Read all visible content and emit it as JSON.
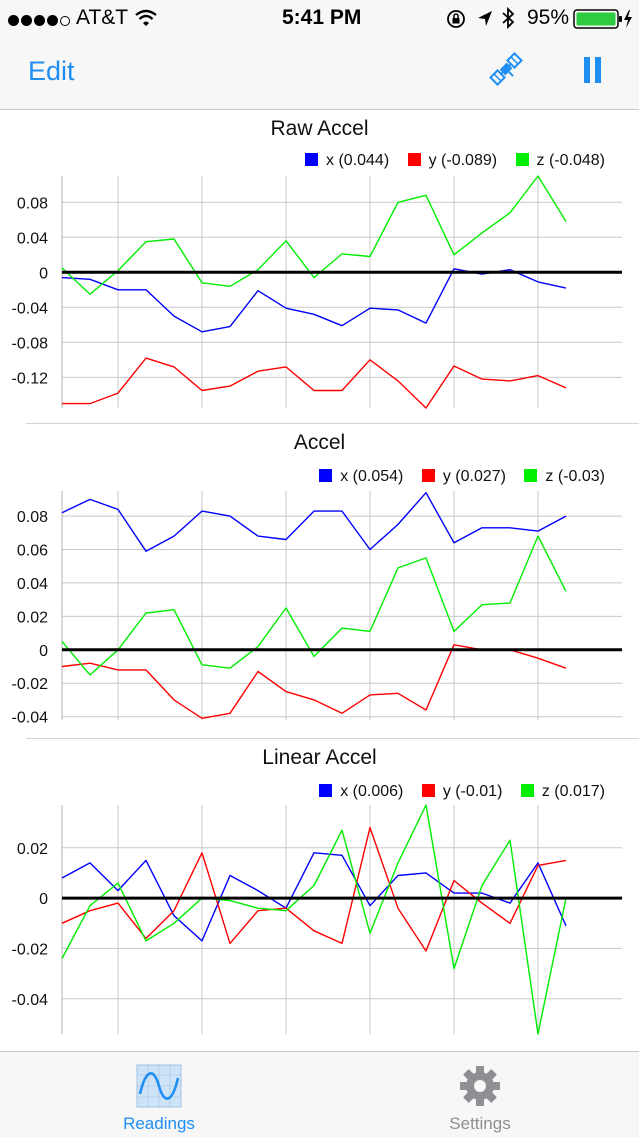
{
  "status_bar": {
    "carrier": "AT&T",
    "time": "5:41 PM",
    "battery": "95%"
  },
  "nav": {
    "edit_label": "Edit"
  },
  "charts": [
    {
      "title": "Raw Accel",
      "legend": {
        "x": "x (0.044)",
        "y": "y (-0.089)",
        "z": "z (-0.048)"
      }
    },
    {
      "title": "Accel",
      "legend": {
        "x": "x (0.054)",
        "y": "y (0.027)",
        "z": "z (-0.03)"
      }
    },
    {
      "title": "Linear Accel",
      "legend": {
        "x": "x (0.006)",
        "y": "y (-0.01)",
        "z": "z (0.017)"
      }
    }
  ],
  "tabs": {
    "readings": "Readings",
    "settings": "Settings"
  },
  "colors": {
    "accent": "#1e8ef3",
    "x": "#0000ff",
    "y": "#ff0000",
    "z": "#00ee00",
    "grid": "#c8c8c8",
    "tab_inactive": "#8e8e93"
  },
  "chart_data": [
    {
      "type": "line",
      "title": "Raw Accel",
      "ylim": [
        -0.155,
        0.11
      ],
      "yticks": [
        0.08,
        0.04,
        0,
        -0.04,
        -0.08,
        -0.12
      ],
      "ytick_labels": [
        "0.08",
        "0.04",
        "0",
        "-0.04",
        "-0.08",
        "-0.12"
      ],
      "grid": true,
      "legend_position": "top-right",
      "series": [
        {
          "name": "x (0.044)",
          "color": "#0000ff",
          "values": [
            -0.006,
            -0.008,
            -0.02,
            -0.02,
            -0.05,
            -0.068,
            -0.062,
            -0.021,
            -0.041,
            -0.048,
            -0.061,
            -0.041,
            -0.043,
            -0.058,
            0.004,
            -0.002,
            0.003,
            -0.011,
            -0.018
          ]
        },
        {
          "name": "y (-0.089)",
          "color": "#ff0000",
          "values": [
            -0.15,
            -0.15,
            -0.138,
            -0.098,
            -0.108,
            -0.135,
            -0.13,
            -0.113,
            -0.108,
            -0.135,
            -0.135,
            -0.1,
            -0.124,
            -0.155,
            -0.107,
            -0.122,
            -0.124,
            -0.118,
            -0.132
          ]
        },
        {
          "name": "z (-0.048)",
          "color": "#00ee00",
          "values": [
            0.005,
            -0.025,
            0.002,
            0.035,
            0.038,
            -0.012,
            -0.016,
            0.003,
            0.036,
            -0.006,
            0.021,
            0.018,
            0.08,
            0.088,
            0.02,
            0.045,
            0.068,
            0.11,
            0.058
          ]
        }
      ]
    },
    {
      "type": "line",
      "title": "Accel",
      "ylim": [
        -0.042,
        0.095
      ],
      "yticks": [
        0.08,
        0.06,
        0.04,
        0.02,
        0,
        -0.02,
        -0.04
      ],
      "ytick_labels": [
        "0.08",
        "0.06",
        "0.04",
        "0.02",
        "0",
        "-0.02",
        "-0.04"
      ],
      "grid": true,
      "legend_position": "top-right",
      "series": [
        {
          "name": "x (0.054)",
          "color": "#0000ff",
          "values": [
            0.082,
            0.09,
            0.084,
            0.059,
            0.068,
            0.083,
            0.08,
            0.068,
            0.066,
            0.083,
            0.083,
            0.06,
            0.075,
            0.094,
            0.064,
            0.073,
            0.073,
            0.071,
            0.08
          ]
        },
        {
          "name": "y (0.027)",
          "color": "#ff0000",
          "values": [
            -0.01,
            -0.008,
            -0.012,
            -0.012,
            -0.03,
            -0.041,
            -0.038,
            -0.013,
            -0.025,
            -0.03,
            -0.038,
            -0.027,
            -0.026,
            -0.036,
            0.003,
            0.0,
            0.0,
            -0.005,
            -0.011
          ]
        },
        {
          "name": "z (-0.03)",
          "color": "#00ee00",
          "values": [
            0.005,
            -0.015,
            0.0,
            0.022,
            0.024,
            -0.009,
            -0.011,
            0.002,
            0.025,
            -0.004,
            0.013,
            0.011,
            0.049,
            0.055,
            0.011,
            0.027,
            0.028,
            0.068,
            0.035
          ]
        }
      ]
    },
    {
      "type": "line",
      "title": "Linear Accel",
      "ylim": [
        -0.054,
        0.037
      ],
      "yticks": [
        0.02,
        0,
        -0.02,
        -0.04
      ],
      "ytick_labels": [
        "0.02",
        "0",
        "-0.02",
        "-0.04"
      ],
      "grid": true,
      "legend_position": "top-right",
      "series": [
        {
          "name": "x (0.006)",
          "color": "#0000ff",
          "values": [
            0.008,
            0.014,
            0.003,
            0.015,
            -0.007,
            -0.017,
            0.009,
            0.003,
            -0.004,
            0.018,
            0.017,
            -0.003,
            0.009,
            0.01,
            0.002,
            0.002,
            -0.002,
            0.014,
            -0.011
          ]
        },
        {
          "name": "y (-0.01)",
          "color": "#ff0000",
          "values": [
            -0.01,
            -0.005,
            -0.002,
            -0.016,
            -0.005,
            0.018,
            -0.018,
            -0.005,
            -0.004,
            -0.013,
            -0.018,
            0.028,
            -0.004,
            -0.021,
            0.007,
            -0.002,
            -0.01,
            0.013,
            0.015
          ]
        },
        {
          "name": "z (0.017)",
          "color": "#00ee00",
          "values": [
            -0.024,
            -0.003,
            0.006,
            -0.017,
            -0.01,
            0.0,
            -0.001,
            -0.004,
            -0.005,
            0.005,
            0.027,
            -0.014,
            0.014,
            0.037,
            -0.028,
            0.005,
            0.023,
            -0.054,
            0.0
          ]
        }
      ]
    }
  ]
}
